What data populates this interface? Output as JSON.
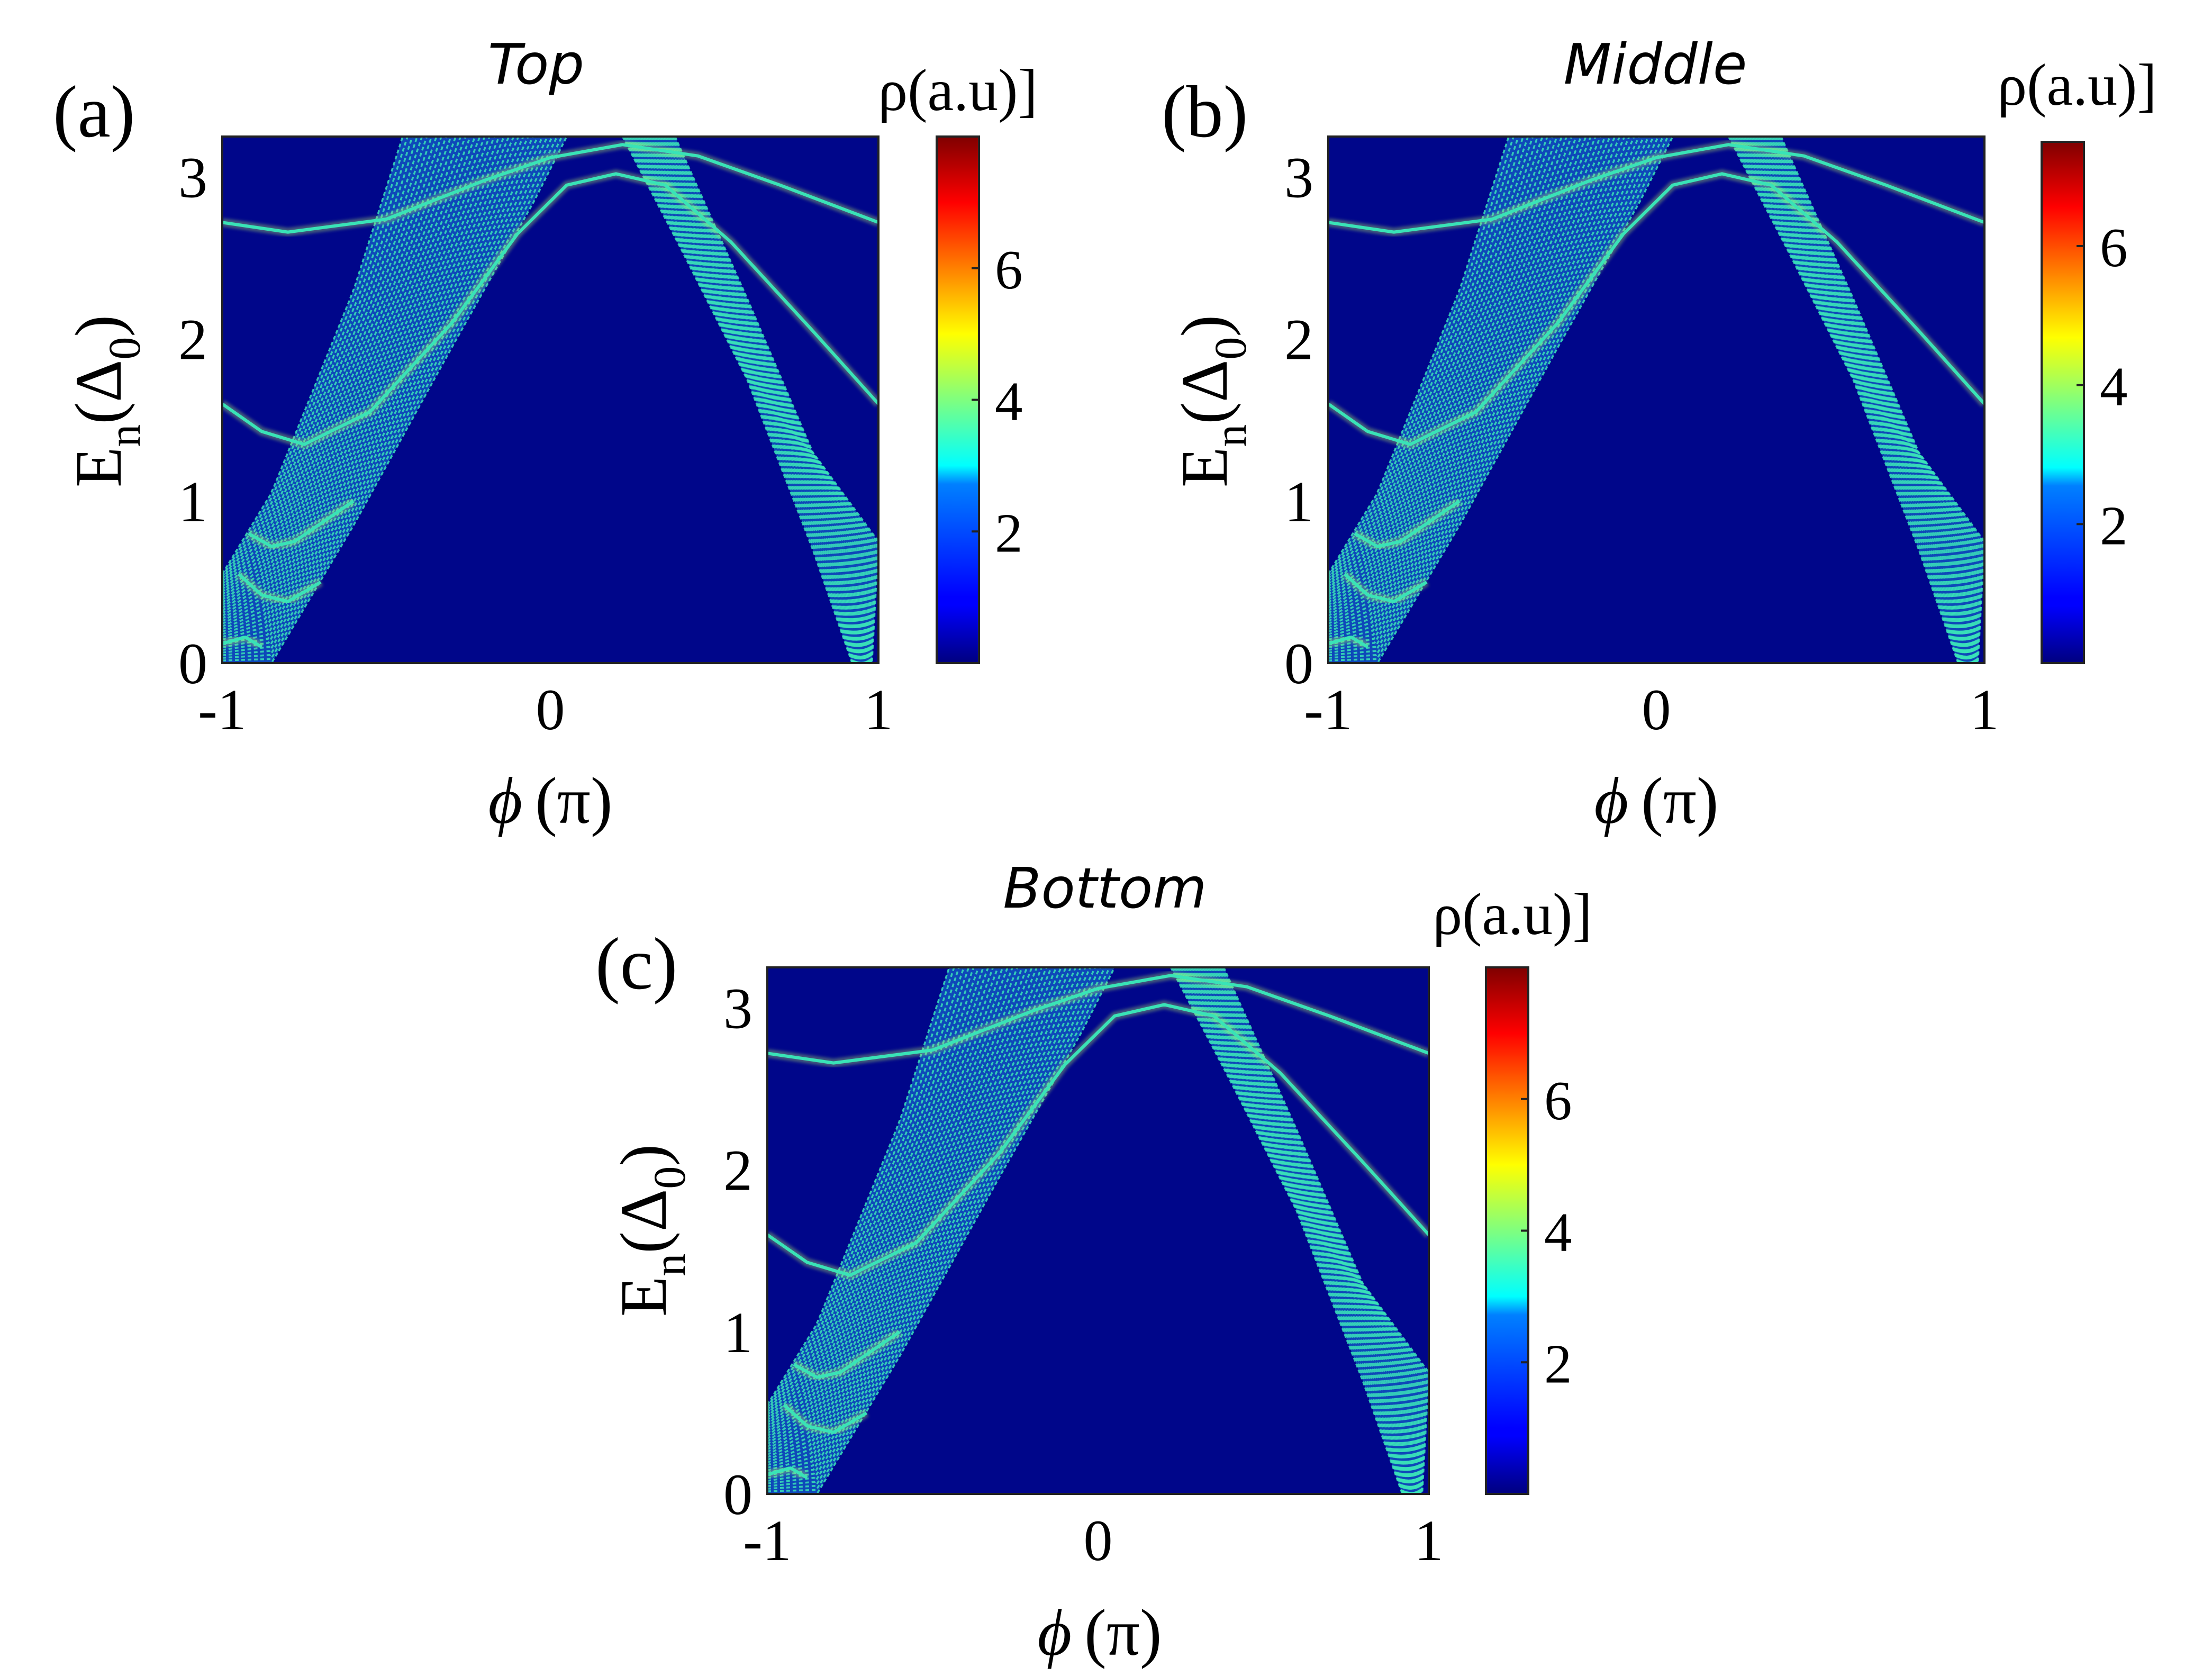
{
  "chart_data": [
    {
      "type": "heatmap",
      "panel_label": "(a)",
      "title": "Top",
      "xlabel": {
        "main": "ϕ",
        "unit": "(π)"
      },
      "ylabel": {
        "main": "E",
        "sub": "n",
        "paren_open": "(",
        "symbol": "Δ",
        "symbol_sub": "0",
        "paren_close": ")"
      },
      "xlim": [
        -1,
        1
      ],
      "ylim": [
        0,
        3.25
      ],
      "xticks": [
        "-1",
        "0",
        "1"
      ],
      "yticks": [
        "0",
        "1",
        "2",
        "3"
      ],
      "colorbar": {
        "label": "ρ(a.u)]",
        "range": [
          0,
          8
        ],
        "ticks": [
          "2",
          "4",
          "6"
        ]
      }
    },
    {
      "type": "heatmap",
      "panel_label": "(b)",
      "title": "Middle",
      "xlabel": {
        "main": "ϕ",
        "unit": "(π)"
      },
      "ylabel": {
        "main": "E",
        "sub": "n",
        "paren_open": "(",
        "symbol": "Δ",
        "symbol_sub": "0",
        "paren_close": ")"
      },
      "xlim": [
        -1,
        1
      ],
      "ylim": [
        0,
        3.25
      ],
      "xticks": [
        "-1",
        "0",
        "1"
      ],
      "yticks": [
        "0",
        "1",
        "2",
        "3"
      ],
      "colorbar": {
        "label": "ρ(a.u)]",
        "range": [
          0,
          7.5
        ],
        "ticks": [
          "2",
          "4",
          "6"
        ]
      }
    },
    {
      "type": "heatmap",
      "panel_label": "(c)",
      "title": "Bottom",
      "xlabel": {
        "main": "ϕ",
        "unit": "(π)"
      },
      "ylabel": {
        "main": "E",
        "sub": "n",
        "paren_open": "(",
        "symbol": "Δ",
        "symbol_sub": "0",
        "paren_close": ")"
      },
      "xlim": [
        -1,
        1
      ],
      "ylim": [
        0,
        3.25
      ],
      "xticks": [
        "-1",
        "0",
        "1"
      ],
      "yticks": [
        "0",
        "1",
        "2",
        "3"
      ],
      "colorbar": {
        "label": "ρ(a.u)]",
        "range": [
          0,
          8
        ],
        "ticks": [
          "2",
          "4",
          "6"
        ]
      }
    }
  ],
  "spectrum": {
    "colormap": "jet",
    "background_color": "#00068a",
    "band_color": "#39e3b7",
    "band_highlight": "#c2f562",
    "continuum": {
      "left_band": {
        "lower_edge": [
          [
            -1.0,
            0.0
          ],
          [
            -0.85,
            0.0
          ],
          [
            -0.6,
            0.85
          ],
          [
            -0.3,
            1.95
          ],
          [
            -0.05,
            2.85
          ],
          [
            0.05,
            3.25
          ]
        ],
        "upper_edge": [
          [
            -1.0,
            0.55
          ],
          [
            -0.85,
            1.05
          ],
          [
            -0.6,
            2.3
          ],
          [
            -0.45,
            3.25
          ]
        ]
      },
      "right_band": {
        "upper_edge": [
          [
            0.22,
            3.25
          ],
          [
            0.4,
            2.55
          ],
          [
            0.6,
            1.75
          ],
          [
            0.8,
            0.7
          ],
          [
            0.92,
            0.0
          ]
        ],
        "lower_edge": [
          [
            0.38,
            3.25
          ],
          [
            0.6,
            2.25
          ],
          [
            0.8,
            1.3
          ],
          [
            1.0,
            0.75
          ],
          [
            0.98,
            0.0
          ]
        ]
      }
    },
    "bound_states": [
      [
        [
          -1.0,
          2.72
        ],
        [
          -0.8,
          2.66
        ],
        [
          -0.5,
          2.74
        ],
        [
          -0.2,
          2.98
        ],
        [
          0.0,
          3.12
        ],
        [
          0.22,
          3.2
        ],
        [
          0.45,
          3.13
        ],
        [
          0.7,
          2.95
        ],
        [
          1.0,
          2.72
        ]
      ],
      [
        [
          -1.0,
          1.6
        ],
        [
          -0.88,
          1.43
        ],
        [
          -0.75,
          1.35
        ],
        [
          -0.55,
          1.55
        ],
        [
          -0.3,
          2.1
        ],
        [
          -0.1,
          2.65
        ],
        [
          0.05,
          2.95
        ],
        [
          0.2,
          3.02
        ],
        [
          0.35,
          2.95
        ],
        [
          0.55,
          2.6
        ],
        [
          0.8,
          2.05
        ],
        [
          1.0,
          1.6
        ]
      ],
      [
        [
          -0.92,
          0.8
        ],
        [
          -0.85,
          0.72
        ],
        [
          -0.78,
          0.75
        ],
        [
          -0.6,
          1.0
        ]
      ],
      [
        [
          -0.95,
          0.55
        ],
        [
          -0.88,
          0.42
        ],
        [
          -0.8,
          0.38
        ],
        [
          -0.7,
          0.5
        ]
      ],
      [
        [
          -1.0,
          0.12
        ],
        [
          -0.93,
          0.16
        ],
        [
          -0.88,
          0.1
        ]
      ]
    ]
  }
}
